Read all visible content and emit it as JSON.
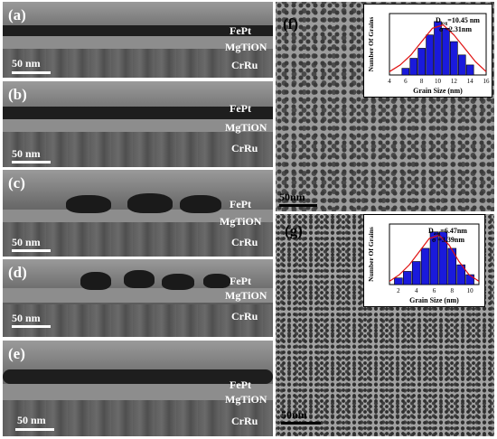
{
  "left_panels": [
    {
      "id": "(a)",
      "layers": [
        "FePt",
        "MgTiON",
        "CrRu"
      ],
      "scale": "50 nm"
    },
    {
      "id": "(b)",
      "layers": [
        "FePt",
        "MgTiON",
        "CrRu"
      ],
      "scale": "50 nm"
    },
    {
      "id": "(c)",
      "layers": [
        "FePt",
        "MgTiON",
        "CrRu"
      ],
      "scale": "50 nm"
    },
    {
      "id": "(d)",
      "layers": [
        "FePt",
        "MgTiON",
        "CrRu"
      ],
      "scale": "50 nm"
    },
    {
      "id": "(e)",
      "layers": [
        "FePt",
        "MgTiON",
        "CrRu"
      ],
      "scale": "50 nm"
    }
  ],
  "right_panels": [
    {
      "id": "(f)",
      "scale": "50nm"
    },
    {
      "id": "(g)",
      "scale": "50nm"
    }
  ],
  "chart_data": [
    {
      "type": "bar",
      "panel": "(f)",
      "xlabel": "Grain Size (nm)",
      "ylabel": "Number Of Grains",
      "annotation_davg": "D",
      "annotation_davg_sub": "avg",
      "annotation_davg_value": "=10.45 nm",
      "annotation_sigma": "σ =2.31nm",
      "xlim": [
        4,
        16
      ],
      "xticks": [
        "4",
        "6",
        "8",
        "10",
        "12",
        "14",
        "16"
      ],
      "x": [
        6,
        7,
        8,
        9,
        10,
        11,
        12,
        13,
        14
      ],
      "values": [
        2,
        5,
        8,
        12,
        16,
        14,
        10,
        6,
        3
      ],
      "fit": [
        1,
        3,
        6,
        10,
        14,
        15,
        12,
        8,
        4,
        1
      ],
      "bar_color": "#1a1adc",
      "fit_color": "#e01010"
    },
    {
      "type": "bar",
      "panel": "(g)",
      "xlabel": "Grain Size (nm)",
      "ylabel": "Number Of Grains",
      "annotation_davg": "D",
      "annotation_davg_sub": "avg",
      "annotation_davg_value": "=6.47nm",
      "annotation_sigma": "σ =3.39nm",
      "xlim": [
        1,
        11
      ],
      "xticks": [
        "2",
        "4",
        "6",
        "8",
        "10"
      ],
      "x": [
        2,
        3,
        4,
        5,
        6,
        7,
        8,
        9,
        10
      ],
      "values": [
        2,
        4,
        7,
        11,
        16,
        16,
        11,
        6,
        3
      ],
      "fit": [
        1,
        3,
        6,
        10,
        14,
        15,
        12,
        7,
        3,
        1
      ],
      "bar_color": "#1a1adc",
      "fit_color": "#e01010"
    }
  ]
}
